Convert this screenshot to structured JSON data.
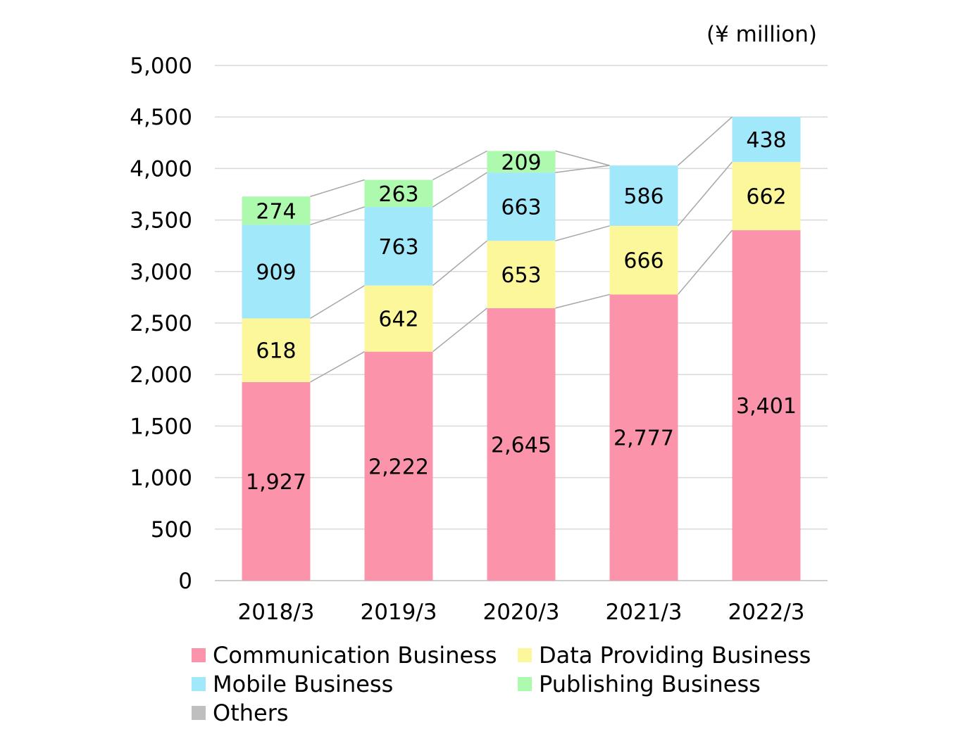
{
  "chart_data": {
    "type": "bar",
    "stacked": true,
    "unit_label": "(¥ million)",
    "categories": [
      "2018/3",
      "2019/3",
      "2020/3",
      "2021/3",
      "2022/3"
    ],
    "series": [
      {
        "name": "Communication Business",
        "color": "#fb94ab",
        "values": [
          1927,
          2222,
          2645,
          2777,
          3401
        ],
        "labels": [
          "1,927",
          "2,222",
          "2,645",
          "2,777",
          "3,401"
        ]
      },
      {
        "name": "Data Providing Business",
        "color": "#fdf79c",
        "values": [
          618,
          642,
          653,
          666,
          662
        ],
        "labels": [
          "618",
          "642",
          "653",
          "666",
          "662"
        ]
      },
      {
        "name": "Mobile Business",
        "color": "#a1e9fa",
        "values": [
          909,
          763,
          663,
          586,
          438
        ],
        "labels": [
          "909",
          "763",
          "663",
          "586",
          "438"
        ]
      },
      {
        "name": "Publishing Business",
        "color": "#adf9ae",
        "values": [
          274,
          263,
          209,
          0,
          0
        ],
        "labels": [
          "274",
          "263",
          "209",
          "",
          ""
        ]
      },
      {
        "name": "Others",
        "color": "#bfbfbf",
        "values": [
          0,
          0,
          0,
          0,
          0
        ],
        "labels": [
          "",
          "",
          "",
          "",
          ""
        ]
      }
    ],
    "ylim": [
      0,
      5000
    ],
    "yticks": [
      "0",
      "500",
      "1,000",
      "1,500",
      "2,000",
      "2,500",
      "3,000",
      "3,500",
      "4,000",
      "4,500",
      "5,000"
    ],
    "grid": true,
    "legend_position": "bottom"
  }
}
